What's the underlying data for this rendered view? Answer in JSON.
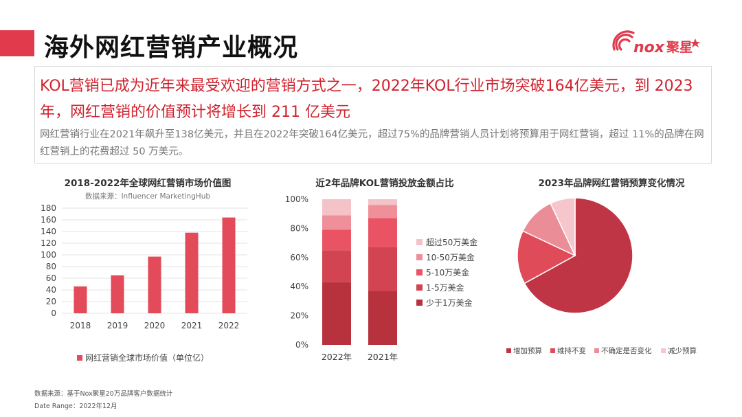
{
  "title": "海外网红营销产业概况",
  "logo": {
    "brand_text": "nox",
    "brand_cn": "聚星"
  },
  "headline": "KOL营销已成为近年来最受欢迎的营销方式之一，2022年KOL行业市场突破164亿美元，到 2023年，网红营销的价值预计将增长到 211 亿美元",
  "subtext": "网红营销行业在2021年飙升至138亿美元，并且在2022年突破164亿美元，超过75%的品牌营销人员计划将预算用于网红营销，超过 11%的品牌在网红营销上的花费超过 50 万美元。",
  "colors": {
    "accent": "#e03a4c",
    "bar": "#e34a5a"
  },
  "chart_data": [
    {
      "type": "bar",
      "title": "2018-2022年全球网红营销市场价值图",
      "source": "数据来源：Influencer MarketingHub",
      "categories": [
        "2018",
        "2019",
        "2020",
        "2021",
        "2022"
      ],
      "values": [
        46,
        65,
        97,
        138,
        164
      ],
      "ylim": [
        0,
        180
      ],
      "yticks": [
        0,
        20,
        40,
        60,
        80,
        100,
        120,
        140,
        160,
        180
      ],
      "legend": [
        {
          "name": "网红营销全球市场价值（单位亿）",
          "color": "#e34a5a"
        }
      ],
      "grid": true
    },
    {
      "type": "stacked_bar",
      "title": "近2年品牌KOL营销投放金额占比",
      "categories": [
        "2022年",
        "2021年"
      ],
      "yticks": [
        "0%",
        "20%",
        "40%",
        "60%",
        "80%",
        "100%"
      ],
      "series": [
        {
          "name": "少于1万美金",
          "color": "#b8323e",
          "values": [
            43,
            37
          ]
        },
        {
          "name": "1-5万美金",
          "color": "#d34452",
          "values": [
            22,
            30
          ]
        },
        {
          "name": "5-10万美金",
          "color": "#ea5364",
          "values": [
            14,
            20
          ]
        },
        {
          "name": "10-50万美金",
          "color": "#ef8f99",
          "values": [
            10,
            9
          ]
        },
        {
          "name": "超过50万美金",
          "color": "#f4c3c8",
          "values": [
            11,
            4
          ]
        }
      ],
      "legend_order": [
        "超过50万美金",
        "10-50万美金",
        "5-10万美金",
        "1-5万美金",
        "少于1万美金"
      ]
    },
    {
      "type": "pie",
      "title": "2023年品牌网红营销预算变化情况",
      "slices": [
        {
          "name": "增加预算",
          "value": 67,
          "color": "#c03545"
        },
        {
          "name": "维持不变",
          "value": 15,
          "color": "#e04b5a"
        },
        {
          "name": "不确定是否变化",
          "value": 11,
          "color": "#eb8d97"
        },
        {
          "name": "减少预算",
          "value": 7,
          "color": "#f5c6cc"
        }
      ]
    }
  ],
  "footer": {
    "source": "数据来源：基于Nox聚星20万品牌客户数据统计",
    "date_range": "Date Range：2022年12月"
  }
}
